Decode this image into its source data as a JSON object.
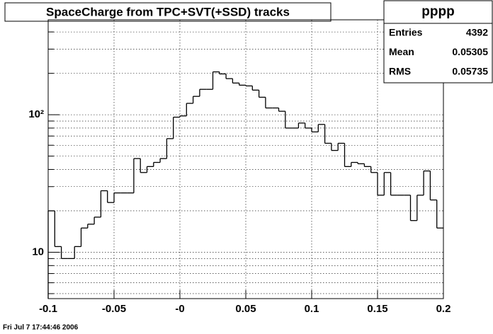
{
  "chart_data": {
    "type": "histogram",
    "title": "SpaceCharge from TPC+SVT(+SSD) tracks",
    "bins": [
      -0.1,
      -0.095,
      -0.09,
      -0.085,
      -0.08,
      -0.075,
      -0.07,
      -0.065,
      -0.06,
      -0.055,
      -0.05,
      -0.045,
      -0.04,
      -0.035,
      -0.03,
      -0.025,
      -0.02,
      -0.015,
      -0.01,
      -0.005,
      0,
      0.005,
      0.01,
      0.015,
      0.02,
      0.025,
      0.03,
      0.035,
      0.04,
      0.045,
      0.05,
      0.055,
      0.06,
      0.065,
      0.07,
      0.075,
      0.08,
      0.085,
      0.09,
      0.095,
      0.1,
      0.105,
      0.11,
      0.115,
      0.12,
      0.125,
      0.13,
      0.135,
      0.14,
      0.145,
      0.15,
      0.155,
      0.16,
      0.165,
      0.17,
      0.175,
      0.18,
      0.185,
      0.19,
      0.195,
      0.2
    ],
    "values": [
      20,
      11,
      9,
      9,
      11,
      15,
      16,
      18,
      28,
      23,
      27,
      27,
      27,
      48,
      38,
      42,
      45,
      48,
      67,
      96,
      98,
      121,
      136,
      153,
      153,
      205,
      198,
      183,
      170,
      164,
      162,
      151,
      134,
      112,
      112,
      106,
      80,
      80,
      87,
      80,
      75,
      85,
      62,
      55,
      62,
      42,
      45,
      44,
      42,
      38,
      26,
      38,
      26,
      26,
      26,
      17,
      26,
      39,
      24,
      15
    ],
    "color": "#000000",
    "xlim": [
      -0.1,
      0.2
    ],
    "xticks": [
      {
        "value": -0.1,
        "label": "-0.1"
      },
      {
        "value": -0.05,
        "label": "-0.05"
      },
      {
        "value": 0,
        "label": "-0"
      },
      0.05,
      0.1,
      0.15,
      0.2
    ],
    "ylim": [
      4.6,
      490
    ],
    "log_y": true,
    "yticks": [
      10,
      {
        "value": 100,
        "label": "10²"
      }
    ],
    "minor_yticks": [
      5,
      6,
      7,
      8,
      9,
      20,
      30,
      40,
      50,
      60,
      70,
      80,
      90,
      200,
      300,
      400
    ],
    "grid": true,
    "stats": {
      "title": "pppp",
      "rows": [
        [
          "Entries",
          4392
        ],
        [
          "Mean",
          0.05305
        ],
        [
          "RMS",
          0.05735
        ]
      ]
    },
    "footer": "Fri Jul  7 17:44:46 2006"
  }
}
